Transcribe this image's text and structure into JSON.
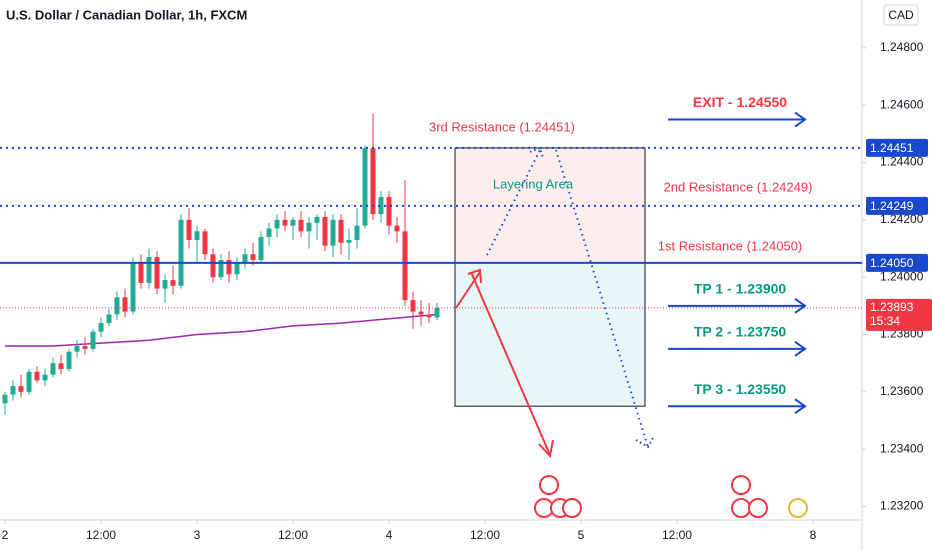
{
  "chart_data": {
    "type": "candlestick",
    "title": "U.S. Dollar / Canadian Dollar, 1h, FXCM",
    "currency": "CAD",
    "up_color": "#22ab94",
    "down_color": "#f23645",
    "candles": [
      [
        1.2356,
        1.236,
        1.2352,
        1.2359
      ],
      [
        1.2359,
        1.2364,
        1.2357,
        1.2362
      ],
      [
        1.2362,
        1.2366,
        1.2358,
        1.236
      ],
      [
        1.236,
        1.2368,
        1.2359,
        1.2367
      ],
      [
        1.2367,
        1.2369,
        1.2363,
        1.2364
      ],
      [
        1.2364,
        1.2368,
        1.2362,
        1.2366
      ],
      [
        1.2366,
        1.2372,
        1.2365,
        1.237
      ],
      [
        1.237,
        1.2373,
        1.2366,
        1.2368
      ],
      [
        1.2368,
        1.2375,
        1.2367,
        1.2374
      ],
      [
        1.2374,
        1.2378,
        1.2372,
        1.2376
      ],
      [
        1.2376,
        1.2379,
        1.2373,
        1.2375
      ],
      [
        1.2375,
        1.2382,
        1.2374,
        1.2381
      ],
      [
        1.2381,
        1.2386,
        1.2379,
        1.2384
      ],
      [
        1.2384,
        1.2389,
        1.2383,
        1.2387
      ],
      [
        1.2387,
        1.2395,
        1.2385,
        1.2393
      ],
      [
        1.2393,
        1.2396,
        1.2386,
        1.2388
      ],
      [
        1.2388,
        1.2407,
        1.2387,
        1.2405
      ],
      [
        1.2405,
        1.2408,
        1.2396,
        1.2398
      ],
      [
        1.2398,
        1.241,
        1.2396,
        1.2407
      ],
      [
        1.2407,
        1.2409,
        1.2394,
        1.2396
      ],
      [
        1.2396,
        1.2401,
        1.2391,
        1.2399
      ],
      [
        1.2399,
        1.2404,
        1.2394,
        1.2397
      ],
      [
        1.2397,
        1.2422,
        1.2396,
        1.242
      ],
      [
        1.242,
        1.2424,
        1.241,
        1.2413
      ],
      [
        1.2413,
        1.2418,
        1.2405,
        1.2416
      ],
      [
        1.2416,
        1.2417,
        1.2406,
        1.2408
      ],
      [
        1.2408,
        1.241,
        1.2398,
        1.24
      ],
      [
        1.24,
        1.2408,
        1.2399,
        1.2406
      ],
      [
        1.2406,
        1.2409,
        1.2398,
        1.2401
      ],
      [
        1.2401,
        1.2407,
        1.2399,
        1.2405
      ],
      [
        1.2405,
        1.241,
        1.2403,
        1.2408
      ],
      [
        1.2408,
        1.2412,
        1.2404,
        1.2406
      ],
      [
        1.2406,
        1.2416,
        1.2405,
        1.2414
      ],
      [
        1.2414,
        1.2419,
        1.2411,
        1.2417
      ],
      [
        1.2417,
        1.2422,
        1.2414,
        1.242
      ],
      [
        1.242,
        1.2423,
        1.2416,
        1.2418
      ],
      [
        1.2418,
        1.2421,
        1.2413,
        1.242
      ],
      [
        1.242,
        1.2423,
        1.2414,
        1.2416
      ],
      [
        1.2416,
        1.2421,
        1.241,
        1.2419
      ],
      [
        1.2419,
        1.2422,
        1.2413,
        1.2421
      ],
      [
        1.2421,
        1.2423,
        1.2409,
        1.2411
      ],
      [
        1.2411,
        1.2422,
        1.2407,
        1.242
      ],
      [
        1.242,
        1.2422,
        1.2408,
        1.2412
      ],
      [
        1.2412,
        1.2417,
        1.2406,
        1.2413
      ],
      [
        1.2413,
        1.2424,
        1.241,
        1.2418
      ],
      [
        1.2418,
        1.2446,
        1.2417,
        1.2445
      ],
      [
        1.2445,
        1.2457,
        1.242,
        1.2422
      ],
      [
        1.2422,
        1.243,
        1.2419,
        1.2428
      ],
      [
        1.2428,
        1.243,
        1.2415,
        1.2418
      ],
      [
        1.2418,
        1.2421,
        1.2412,
        1.2416
      ],
      [
        1.2416,
        1.2434,
        1.239,
        1.2392
      ],
      [
        1.2392,
        1.2395,
        1.2382,
        1.2388
      ],
      [
        1.2388,
        1.2392,
        1.2383,
        1.2387
      ],
      [
        1.2387,
        1.2391,
        1.2384,
        1.2386
      ],
      [
        1.2386,
        1.2391,
        1.2385,
        1.23893
      ]
    ],
    "moving_average": {
      "color": "#9c27b0",
      "x": [
        0,
        6,
        12,
        18,
        24,
        30,
        36,
        42,
        48,
        54
      ],
      "values": [
        1.2376,
        1.2376,
        1.2377,
        1.2378,
        1.238,
        1.2381,
        1.2383,
        1.2384,
        1.23855,
        1.2387
      ]
    },
    "ylim": [
      1.23153,
      1.24967
    ],
    "yticks": [
      {
        "value": 1.248,
        "label": "1.24800"
      },
      {
        "value": 1.246,
        "label": "1.24600"
      },
      {
        "value": 1.244,
        "label": "1.24400"
      },
      {
        "value": 1.242,
        "label": "1.24200"
      },
      {
        "value": 1.24,
        "label": "1.24000"
      },
      {
        "value": 1.238,
        "label": "1.23800"
      },
      {
        "value": 1.236,
        "label": "1.23600"
      },
      {
        "value": 1.234,
        "label": "1.23400"
      },
      {
        "value": 1.232,
        "label": "1.23200"
      }
    ],
    "xticks": [
      {
        "value": 0,
        "label": "2"
      },
      {
        "value": 12,
        "label": "12:00"
      },
      {
        "value": 24,
        "label": "3"
      },
      {
        "value": 36,
        "label": "12:00"
      },
      {
        "value": 48,
        "label": "4"
      },
      {
        "value": 60,
        "label": "12:00"
      },
      {
        "value": 72,
        "label": "5"
      },
      {
        "value": 84,
        "label": "12:00"
      },
      {
        "value": 101,
        "label": "8"
      }
    ],
    "price_lines": [
      {
        "value": 1.24451,
        "label": "1.24451",
        "style": "dotted",
        "color": "#1848cc"
      },
      {
        "value": 1.24249,
        "label": "1.24249",
        "style": "dotted",
        "color": "#1848cc"
      },
      {
        "value": 1.2405,
        "label": "1.24050",
        "style": "solid",
        "color": "#1848cc"
      }
    ],
    "last_price": {
      "value": 1.23893,
      "label": "1.23893",
      "countdown": "15:34",
      "color": "#f23645"
    },
    "zones": [
      {
        "top": 1.24451,
        "bottom": 1.2405,
        "color": "#fdeeee"
      },
      {
        "top": 1.2405,
        "bottom": 1.2355,
        "color": "#e8f6f8"
      }
    ],
    "annotations": [
      "3rd Resistance (1.24451)",
      "2nd Resistance (1.24249)",
      "1st Resistance (1.24050)",
      "Layering Area"
    ],
    "targets": [
      {
        "label": "EXIT - 1.24550",
        "value": 1.2455,
        "color": "#f23645"
      },
      {
        "label": "TP 1 - 1.23900",
        "value": 1.239,
        "color": "#089981"
      },
      {
        "label": "TP 2 - 1.23750",
        "value": 1.2375,
        "color": "#089981"
      },
      {
        "label": "TP 3 - 1.23550",
        "value": 1.2355,
        "color": "#089981"
      }
    ]
  }
}
